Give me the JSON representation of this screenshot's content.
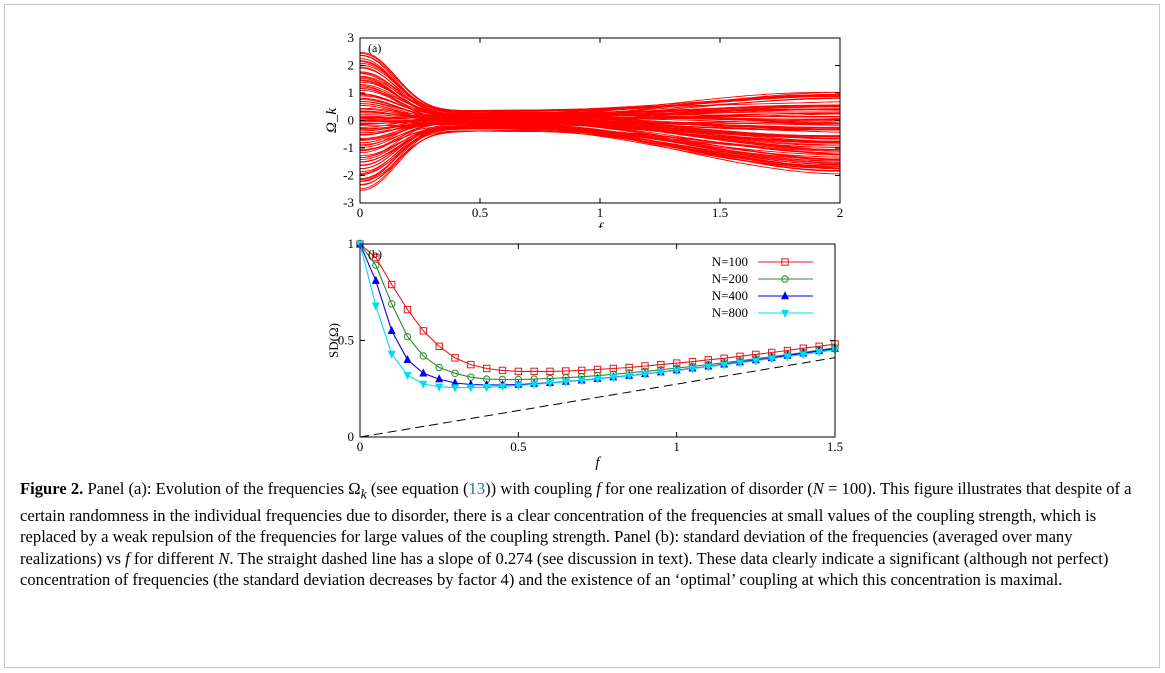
{
  "chart_data": [
    {
      "type": "line",
      "panel_label": "(a)",
      "xlabel": "f",
      "ylabel": "Ω_k",
      "xlim": [
        0,
        2
      ],
      "ylim": [
        -3,
        3
      ],
      "xticks": [
        "0",
        "0.5",
        "1",
        "1.5",
        "2"
      ],
      "yticks": [
        "-3",
        "-2",
        "-1",
        "0",
        "1",
        "2",
        "3"
      ],
      "series_color": "#ff0000",
      "n_curves": 100,
      "initial_range": [
        -2.55,
        2.55
      ],
      "min_spread_f": 0.7,
      "final_range_at_f2": [
        -1.95,
        1.0
      ]
    },
    {
      "type": "line",
      "panel_label": "(b)",
      "xlabel": "f",
      "ylabel": "SD(Ω)",
      "xlim": [
        0,
        1.5
      ],
      "ylim": [
        0,
        1
      ],
      "xticks": [
        "0",
        "0.5",
        "1",
        "1.5"
      ],
      "yticks": [
        "0",
        "0.5",
        "1"
      ],
      "legend_position": "top-right",
      "x": [
        0,
        0.05,
        0.1,
        0.15,
        0.2,
        0.25,
        0.3,
        0.35,
        0.4,
        0.45,
        0.5,
        0.55,
        0.6,
        0.65,
        0.7,
        0.75,
        0.8,
        0.85,
        0.9,
        0.95,
        1.0,
        1.05,
        1.1,
        1.15,
        1.2,
        1.25,
        1.3,
        1.35,
        1.4,
        1.45,
        1.5
      ],
      "series": [
        {
          "name": "N=100",
          "color": "#e41a1c",
          "marker": "square",
          "values": [
            1.0,
            0.93,
            0.79,
            0.66,
            0.55,
            0.47,
            0.41,
            0.375,
            0.355,
            0.345,
            0.34,
            0.34,
            0.34,
            0.342,
            0.345,
            0.35,
            0.355,
            0.36,
            0.368,
            0.375,
            0.383,
            0.39,
            0.4,
            0.408,
            0.418,
            0.428,
            0.438,
            0.448,
            0.46,
            0.47,
            0.482
          ]
        },
        {
          "name": "N=200",
          "color": "#2e8b2e",
          "marker": "circle",
          "values": [
            1.0,
            0.89,
            0.69,
            0.52,
            0.42,
            0.36,
            0.33,
            0.31,
            0.3,
            0.298,
            0.298,
            0.3,
            0.303,
            0.307,
            0.312,
            0.318,
            0.325,
            0.332,
            0.34,
            0.348,
            0.357,
            0.366,
            0.375,
            0.385,
            0.395,
            0.405,
            0.416,
            0.427,
            0.438,
            0.45,
            0.462
          ]
        },
        {
          "name": "N=400",
          "color": "#0000ee",
          "marker": "triangle-up",
          "values": [
            1.0,
            0.81,
            0.55,
            0.4,
            0.33,
            0.3,
            0.28,
            0.272,
            0.27,
            0.27,
            0.272,
            0.276,
            0.281,
            0.287,
            0.294,
            0.302,
            0.31,
            0.318,
            0.327,
            0.336,
            0.346,
            0.356,
            0.366,
            0.377,
            0.388,
            0.399,
            0.41,
            0.422,
            0.434,
            0.446,
            0.458
          ]
        },
        {
          "name": "N=800",
          "color": "#00dcf0",
          "marker": "triangle-down",
          "values": [
            1.0,
            0.68,
            0.43,
            0.32,
            0.275,
            0.26,
            0.256,
            0.256,
            0.258,
            0.262,
            0.267,
            0.273,
            0.279,
            0.286,
            0.293,
            0.301,
            0.309,
            0.317,
            0.326,
            0.335,
            0.344,
            0.354,
            0.364,
            0.374,
            0.385,
            0.395,
            0.406,
            0.417,
            0.428,
            0.44,
            0.452
          ]
        }
      ],
      "reference_line": {
        "style": "dashed",
        "slope": 0.274,
        "intercept": 0,
        "color": "#000000"
      }
    }
  ],
  "caption": {
    "label": "Figure 2.",
    "seg1": " Panel (a): Evolution of the frequencies Ω",
    "seg1_sub": "k",
    "seg2": " (see equation (",
    "ref": "13",
    "seg3": ")) with coupling ",
    "seg3_f": "f",
    "seg4": " for one realization of disorder (",
    "seg4_n": "N",
    "seg5": " = 100). This figure illustrates that despite of a certain randomness in the individual frequencies due to disorder, there is a clear concentration of the frequencies at small values of the coupling strength, which is replaced by a weak repulsion of the frequencies for large values of the coupling strength. Panel (b): standard deviation of the frequencies (averaged over many realizations) vs ",
    "seg5_f": "f",
    "seg6": " for different ",
    "seg6_n": "N",
    "seg7": ". The straight dashed line has a slope of 0.274 (see discussion in text). These data clearly indicate a significant (although not perfect) concentration of frequencies (the standard deviation decreases by factor 4) and the existence of an ‘optimal’ coupling at which this concentration is maximal."
  }
}
